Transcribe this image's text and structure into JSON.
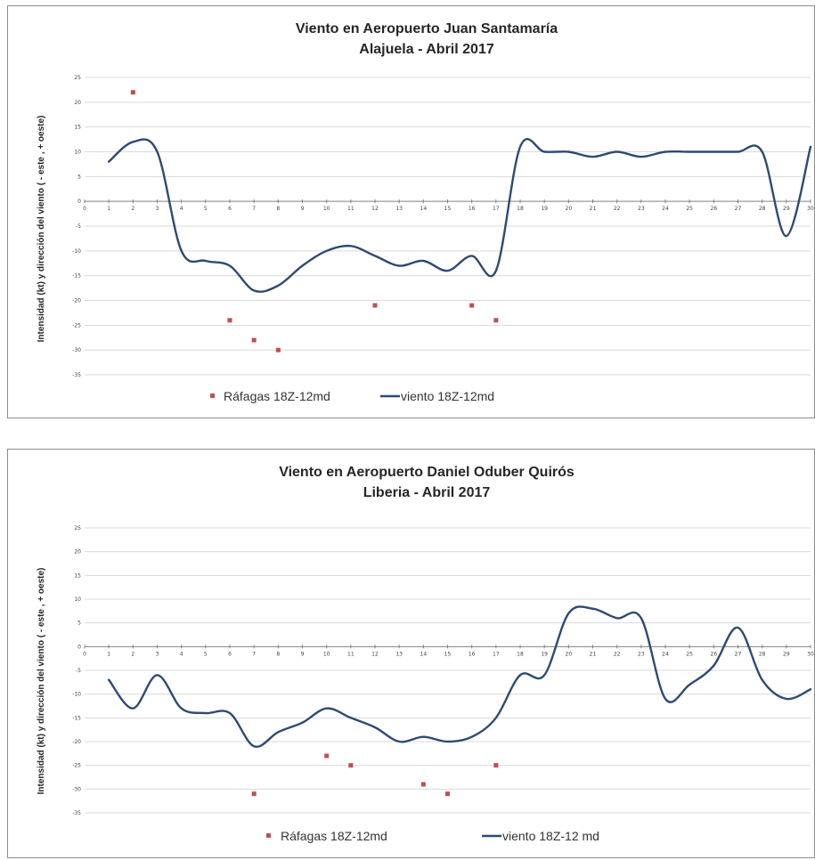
{
  "colors": {
    "line": "#2e4a74",
    "gust": "#c0504d",
    "grid": "#d9d9d9",
    "border": "#8c8c8c"
  },
  "chart_data": [
    {
      "type": "line",
      "title": "Viento en Aeropuerto Juan Santamaría",
      "subtitle": "Alajuela - Abril 2017",
      "ylabel": "Intensidad (kt) y dirección del viento ( - este , + oeste)",
      "xlabel": "",
      "xlim": [
        0,
        30
      ],
      "ylim": [
        -35,
        25
      ],
      "grid": true,
      "legend_position": "bottom",
      "x_ticks": [
        0,
        1,
        2,
        3,
        4,
        5,
        6,
        7,
        8,
        9,
        10,
        11,
        12,
        13,
        14,
        15,
        16,
        17,
        18,
        19,
        20,
        21,
        22,
        23,
        24,
        25,
        26,
        27,
        28,
        29,
        30
      ],
      "y_ticks": [
        25,
        20,
        15,
        10,
        5,
        0,
        -5,
        -10,
        -15,
        -20,
        -25,
        -30,
        -35
      ],
      "series": [
        {
          "name": "Ráfagas 18Z-12md",
          "kind": "scatter",
          "x": [
            2,
            6,
            7,
            8,
            12,
            16,
            17
          ],
          "y": [
            22,
            -24,
            -28,
            -30,
            -21,
            -21,
            -24
          ]
        },
        {
          "name": "viento 18Z-12md",
          "kind": "line",
          "x": [
            1,
            2,
            3,
            4,
            5,
            6,
            7,
            8,
            9,
            10,
            11,
            12,
            13,
            14,
            15,
            16,
            17,
            18,
            19,
            20,
            21,
            22,
            23,
            24,
            25,
            26,
            27,
            28,
            29,
            30
          ],
          "y": [
            8,
            12,
            10,
            -10,
            -12,
            -13,
            -18,
            -17,
            -13,
            -10,
            -9,
            -11,
            -13,
            -12,
            -14,
            -11,
            -14,
            11,
            10,
            10,
            9,
            10,
            9,
            10,
            10,
            10,
            10,
            10,
            -7,
            11
          ]
        }
      ]
    },
    {
      "type": "line",
      "title": "Viento en Aeropuerto Daniel Oduber Quirós",
      "subtitle": "Liberia - Abril 2017",
      "ylabel": "Intensidad (kt) y dirección del viento ( - este , + oeste)",
      "xlabel": "",
      "xlim": [
        0,
        30
      ],
      "ylim": [
        -35,
        25
      ],
      "grid": true,
      "legend_position": "bottom",
      "x_ticks": [
        0,
        1,
        2,
        3,
        4,
        5,
        6,
        7,
        8,
        9,
        10,
        11,
        12,
        13,
        14,
        15,
        16,
        17,
        18,
        19,
        20,
        21,
        22,
        23,
        24,
        25,
        26,
        27,
        28,
        29,
        30
      ],
      "y_ticks": [
        25,
        20,
        15,
        10,
        5,
        0,
        -5,
        -10,
        -15,
        -20,
        -25,
        -30,
        -35
      ],
      "series": [
        {
          "name": "Ráfagas 18Z-12md",
          "kind": "scatter",
          "x": [
            7,
            10,
            11,
            14,
            15,
            17
          ],
          "y": [
            -31,
            -23,
            -25,
            -29,
            -31,
            -25
          ]
        },
        {
          "name": "viento 18Z-12 md",
          "kind": "line",
          "x": [
            1,
            2,
            3,
            4,
            5,
            6,
            7,
            8,
            9,
            10,
            11,
            12,
            13,
            14,
            15,
            16,
            17,
            18,
            19,
            20,
            21,
            22,
            23,
            24,
            25,
            26,
            27,
            28,
            29,
            30
          ],
          "y": [
            -7,
            -13,
            -6,
            -13,
            -14,
            -14,
            -21,
            -18,
            -16,
            -13,
            -15,
            -17,
            -20,
            -19,
            -20,
            -19,
            -15,
            -6,
            -6,
            7,
            8,
            6,
            6,
            -11,
            -8,
            -4,
            4,
            -7,
            -11,
            -9
          ]
        }
      ]
    }
  ]
}
